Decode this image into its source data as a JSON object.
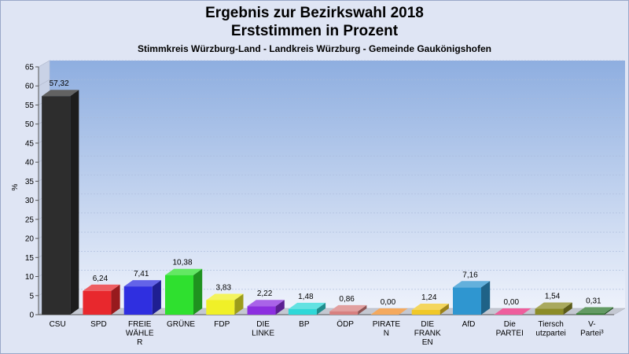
{
  "header": {
    "title_line1": "Ergebnis zur Bezirkswahl 2018",
    "title_line2": "Erststimmen in Prozent",
    "subtitle": "Stimmkreis Würzburg-Land - Landkreis Würzburg - Gemeinde Gaukönigshofen"
  },
  "chart_data": {
    "type": "bar",
    "title": "Ergebnis zur Bezirkswahl 2018 Erststimmen in Prozent",
    "subtitle": "Stimmkreis Würzburg-Land - Landkreis Würzburg - Gemeinde Gaukönigshofen",
    "ylabel": "%",
    "xlabel": "",
    "ylim": [
      0,
      65
    ],
    "yticks": [
      0,
      5,
      10,
      15,
      20,
      25,
      30,
      35,
      40,
      45,
      50,
      55,
      60,
      65
    ],
    "grid": true,
    "legend": "none",
    "categories": [
      [
        "CSU"
      ],
      [
        "SPD"
      ],
      [
        "FREIE",
        "WÄHLE",
        "R"
      ],
      [
        "GRÜNE"
      ],
      [
        "FDP"
      ],
      [
        "DIE",
        "LINKE"
      ],
      [
        "BP"
      ],
      [
        "ÖDP"
      ],
      [
        "PIRATE",
        "N"
      ],
      [
        "DIE",
        "FRANK",
        "EN"
      ],
      [
        "AfD"
      ],
      [
        "Die",
        "PARTEI"
      ],
      [
        "Tiersch",
        "utzpartei"
      ],
      [
        "V-",
        "Partei³"
      ]
    ],
    "values": [
      57.32,
      6.24,
      7.41,
      10.38,
      3.83,
      2.22,
      1.48,
      0.86,
      0.0,
      1.24,
      7.16,
      0.0,
      1.54,
      0.31
    ],
    "value_labels": [
      "57,32",
      "6,24",
      "7,41",
      "10,38",
      "3,83",
      "2,22",
      "1,48",
      "0,86",
      "0,00",
      "1,24",
      "7,16",
      "0,00",
      "1,54",
      "0,31"
    ],
    "colors": [
      "#2d2d2d",
      "#e8282d",
      "#2f2fe0",
      "#2fe02f",
      "#f0f028",
      "#8c2fe0",
      "#2fd8d8",
      "#d88080",
      "#f08c28",
      "#f0c828",
      "#2f96d0",
      "#e8287c",
      "#8c8c28",
      "#2f782f"
    ]
  }
}
